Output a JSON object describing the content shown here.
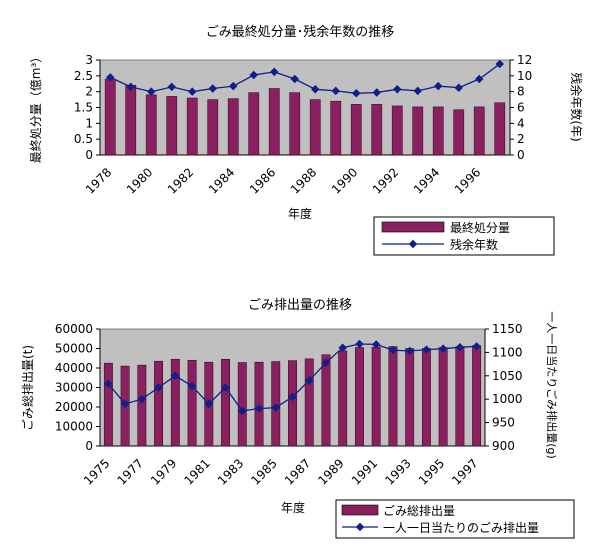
{
  "chart_data": [
    {
      "type": "bar",
      "title": "ごみ最終処分量･残余年数の推移",
      "xlabel": "年度",
      "ylabel_left": "最終処分量（億m³）",
      "ylabel_right": "残余年数(年)",
      "x": [
        1978,
        1979,
        1980,
        1981,
        1982,
        1983,
        1984,
        1985,
        1986,
        1987,
        1988,
        1989,
        1990,
        1991,
        1992,
        1993,
        1994,
        1995,
        1996,
        1997
      ],
      "x_tick_labels": [
        "1978",
        "1980",
        "1982",
        "1984",
        "1986",
        "1988",
        "1990",
        "1992",
        "1994",
        "1996"
      ],
      "ylim_left": [
        0,
        3
      ],
      "y_ticks_left": [
        "0",
        "0.5",
        "1",
        "1.5",
        "2",
        "2.5",
        "3"
      ],
      "ylim_right": [
        0,
        12
      ],
      "y_ticks_right": [
        "0",
        "2",
        "4",
        "6",
        "8",
        "10",
        "12"
      ],
      "grid": false,
      "legend_placement": "bottom-right",
      "series": [
        {
          "name": "最終処分量",
          "kind": "bar",
          "axis": "left",
          "color": "#8a2060",
          "values": [
            2.4,
            2.2,
            1.9,
            1.85,
            1.8,
            1.75,
            1.78,
            1.97,
            2.1,
            1.97,
            1.75,
            1.7,
            1.6,
            1.6,
            1.55,
            1.52,
            1.52,
            1.43,
            1.52,
            1.65
          ]
        },
        {
          "name": "残余年数",
          "kind": "line",
          "axis": "right",
          "color": "#0f1f8c",
          "values": [
            9.8,
            8.6,
            8.0,
            8.6,
            8.0,
            8.4,
            8.7,
            10.1,
            10.5,
            9.6,
            8.3,
            8.1,
            7.8,
            7.9,
            8.3,
            8.1,
            8.7,
            8.5,
            9.6,
            11.5
          ]
        }
      ]
    },
    {
      "type": "bar",
      "title": "ごみ排出量の推移",
      "xlabel": "年度",
      "ylabel_left": "ごみ総排出量(t)",
      "ylabel_right": "一人一日当たりごみ排出量(g)",
      "x": [
        1975,
        1976,
        1977,
        1978,
        1979,
        1980,
        1981,
        1982,
        1983,
        1984,
        1985,
        1986,
        1987,
        1988,
        1989,
        1990,
        1991,
        1992,
        1993,
        1994,
        1995,
        1996,
        1997
      ],
      "x_tick_labels": [
        "1975",
        "1977",
        "1979",
        "1981",
        "1983",
        "1985",
        "1987",
        "1989",
        "1991",
        "1993",
        "1995",
        "1997"
      ],
      "ylim_left": [
        0,
        60000
      ],
      "y_ticks_left": [
        "0",
        "10000",
        "20000",
        "30000",
        "40000",
        "50000",
        "60000"
      ],
      "ylim_right": [
        900,
        1150
      ],
      "y_ticks_right": [
        "900",
        "950",
        "1000",
        "1050",
        "1100",
        "1150"
      ],
      "grid": false,
      "legend_placement": "bottom-right",
      "series": [
        {
          "name": "ごみ総排出量",
          "kind": "bar",
          "axis": "left",
          "color": "#8a2060",
          "values": [
            42500,
            41000,
            41500,
            43500,
            44500,
            44000,
            43000,
            44500,
            42800,
            43000,
            43300,
            43800,
            44700,
            46800,
            48800,
            50500,
            50700,
            51000,
            50000,
            50000,
            50500,
            51000,
            51500
          ]
        },
        {
          "name": "一人一日当たりのごみ排出量",
          "kind": "line",
          "axis": "right",
          "color": "#0f1f8c",
          "values": [
            1033,
            990,
            1000,
            1025,
            1050,
            1028,
            990,
            1025,
            975,
            980,
            982,
            1005,
            1040,
            1078,
            1110,
            1118,
            1117,
            1105,
            1103,
            1106,
            1108,
            1111,
            1113
          ]
        }
      ]
    }
  ]
}
